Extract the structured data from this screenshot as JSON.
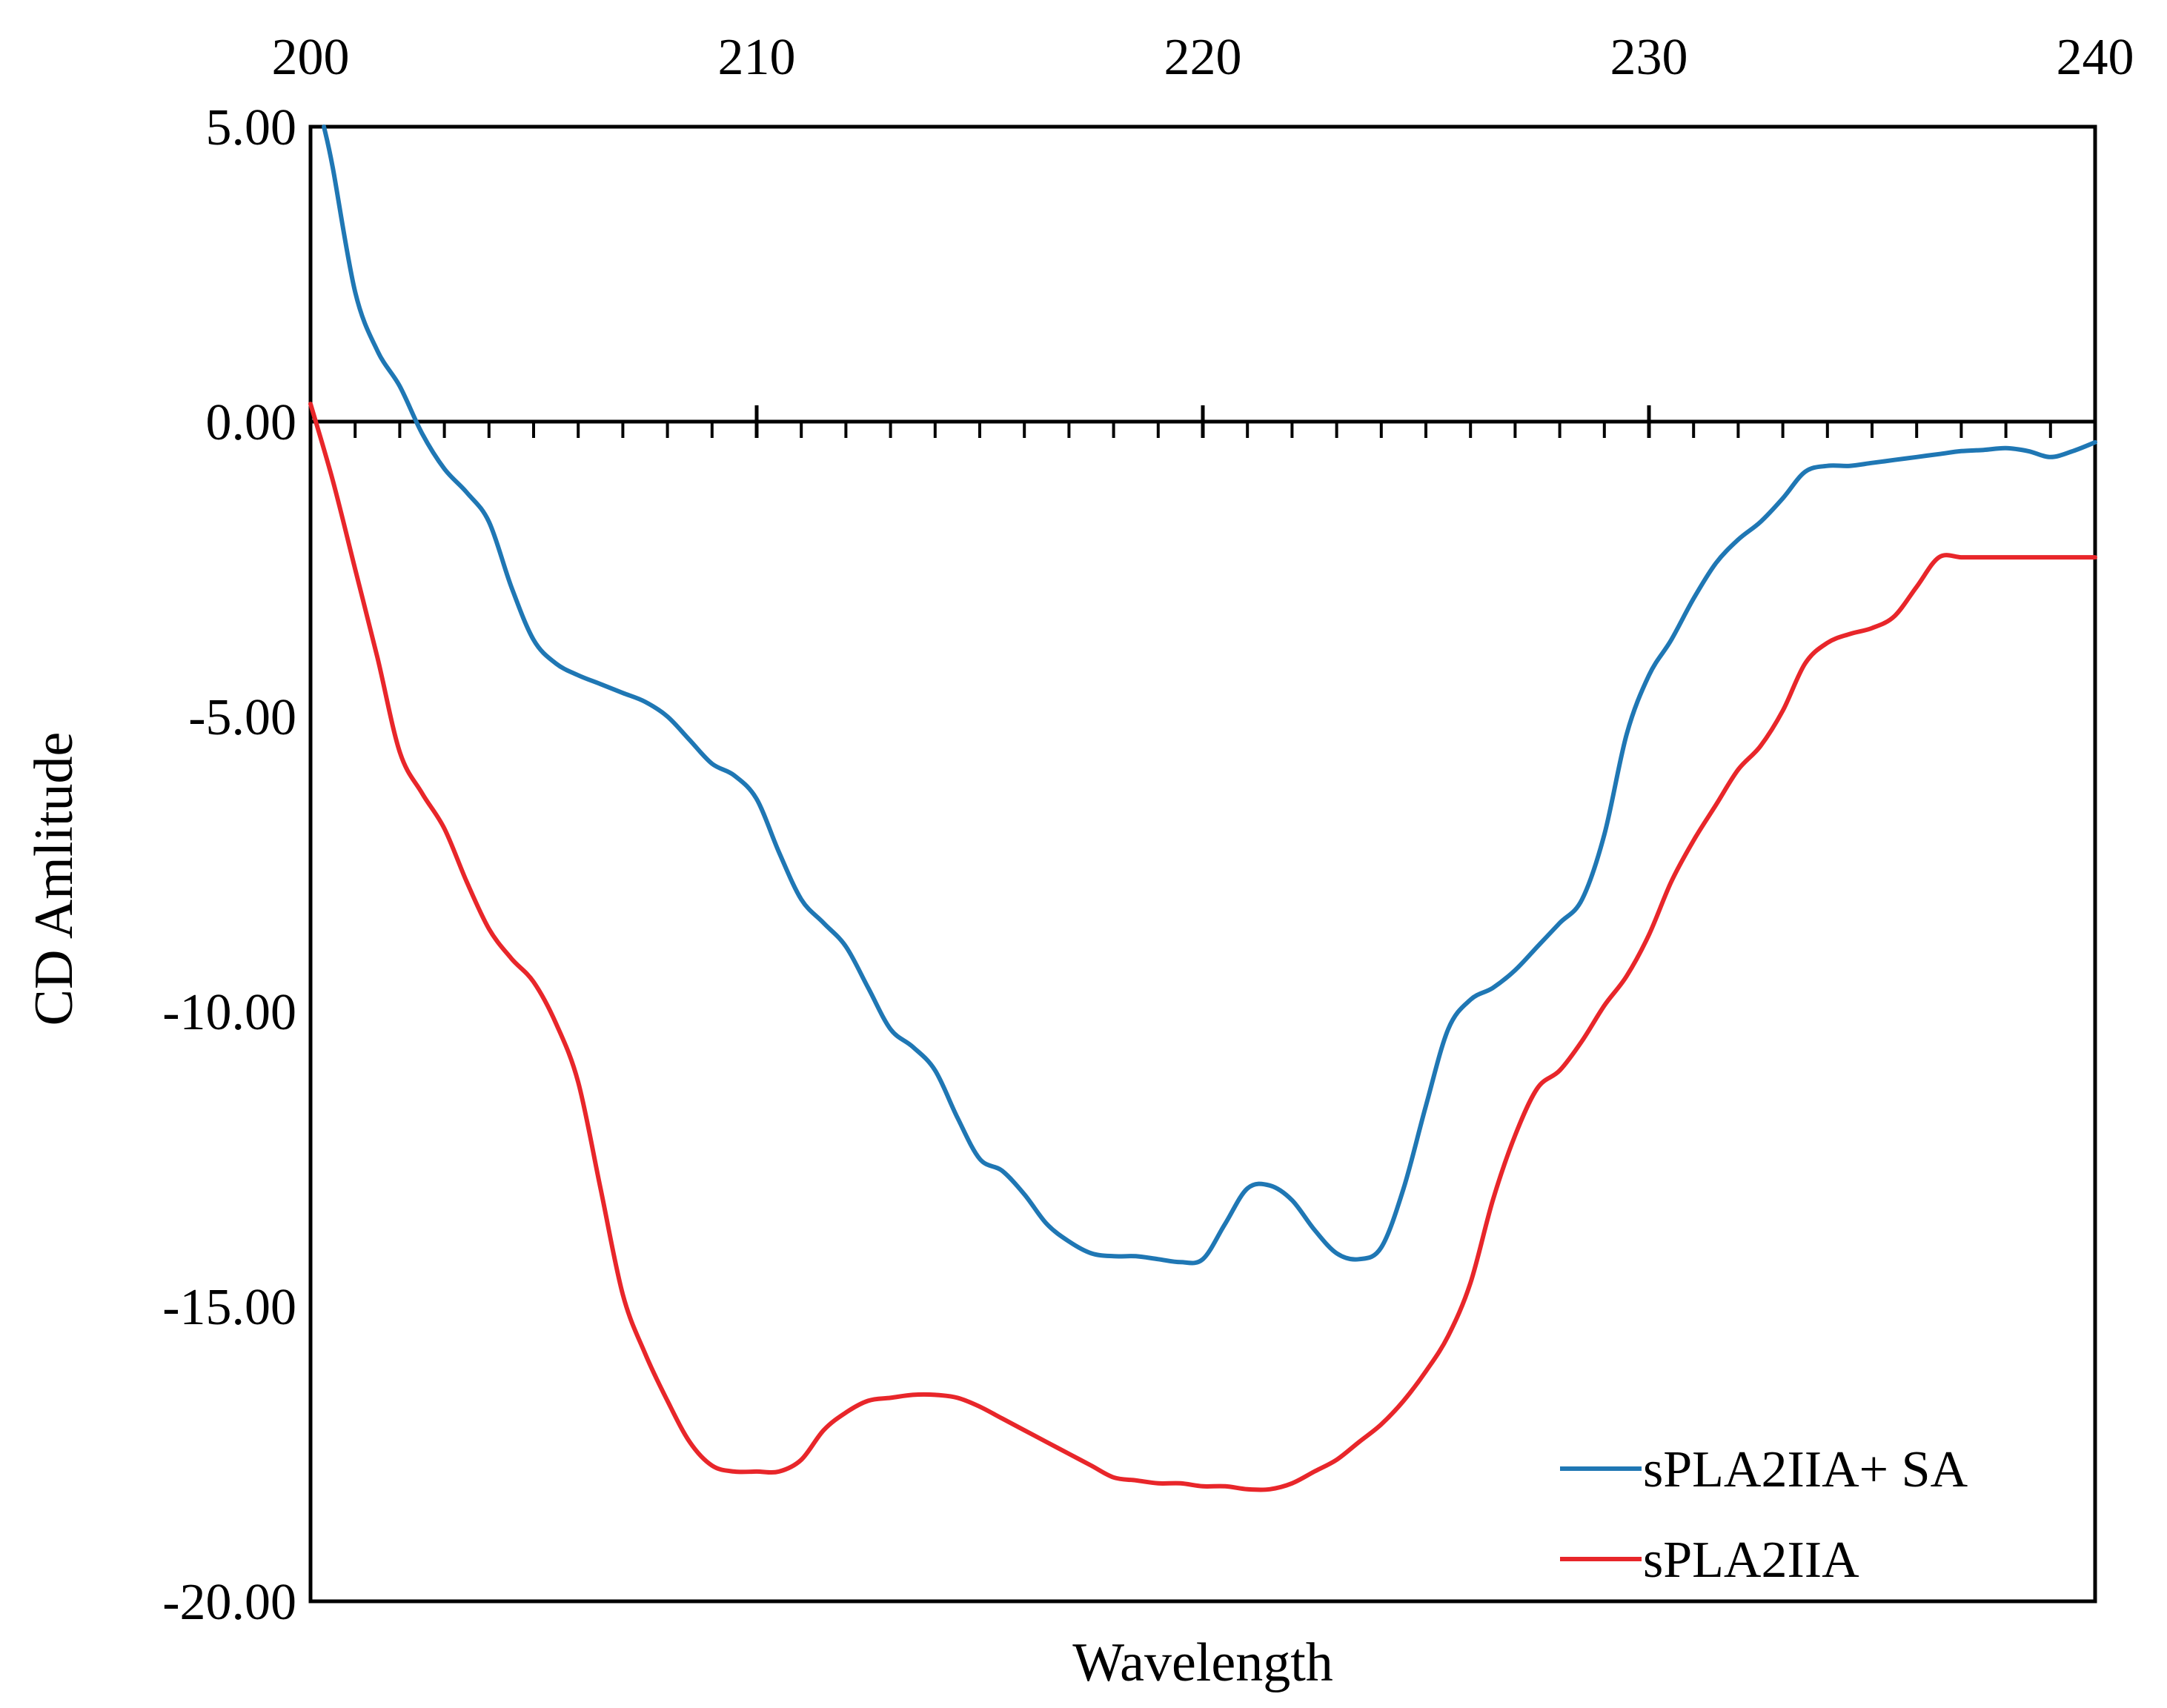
{
  "chart_data": {
    "type": "line",
    "title": "",
    "xlabel": "Wavelength",
    "ylabel": "CD Amlitude",
    "xlim": [
      200,
      240
    ],
    "ylim": [
      -20,
      5
    ],
    "x_ticks": [
      "200",
      "210",
      "220",
      "230",
      "240"
    ],
    "y_ticks": [
      "5.00",
      "0.00",
      "-5.00",
      "-10.00",
      "-15.00",
      "-20.00"
    ],
    "x_tick_values": [
      200,
      210,
      220,
      230,
      240
    ],
    "y_tick_values": [
      5,
      0,
      -5,
      -10,
      -15,
      -20
    ],
    "x_axis_position": "top",
    "grid": false,
    "legend_position": "bottom-right",
    "series": [
      {
        "name": "sPLA2IIA+ SA",
        "color": "#1f77b4",
        "x": [
          200.3,
          200.5,
          201,
          201.5,
          202,
          202.5,
          203,
          203.5,
          204,
          204.5,
          205,
          205.5,
          206,
          206.5,
          207,
          207.5,
          208,
          208.5,
          209,
          209.5,
          210,
          210.5,
          211,
          211.5,
          212,
          212.5,
          213,
          213.5,
          214,
          214.5,
          215,
          215.5,
          216,
          216.5,
          217,
          217.5,
          218,
          218.5,
          219,
          219.5,
          220,
          220.5,
          221,
          221.5,
          222,
          222.5,
          223,
          223.5,
          224,
          224.5,
          225,
          225.5,
          226,
          226.5,
          227,
          227.5,
          228,
          228.5,
          229,
          229.5,
          230,
          230.5,
          231,
          231.5,
          232,
          232.5,
          233,
          233.5,
          234,
          234.5,
          235,
          235.5,
          236,
          236.5,
          237,
          237.5,
          238,
          238.5,
          239,
          239.5,
          240
        ],
        "y": [
          5.0,
          4.3,
          2.2,
          1.2,
          0.6,
          -0.2,
          -0.8,
          -1.2,
          -1.7,
          -2.8,
          -3.7,
          -4.1,
          -4.3,
          -4.45,
          -4.6,
          -4.75,
          -5.0,
          -5.4,
          -5.8,
          -6.0,
          -6.4,
          -7.3,
          -8.1,
          -8.5,
          -8.9,
          -9.6,
          -10.3,
          -10.6,
          -11.0,
          -11.8,
          -12.5,
          -12.7,
          -13.1,
          -13.6,
          -13.9,
          -14.1,
          -14.15,
          -14.15,
          -14.2,
          -14.25,
          -14.2,
          -13.6,
          -13.0,
          -12.95,
          -13.2,
          -13.7,
          -14.1,
          -14.2,
          -14.0,
          -13.0,
          -11.6,
          -10.3,
          -9.8,
          -9.6,
          -9.3,
          -8.9,
          -8.5,
          -8.1,
          -7.0,
          -5.3,
          -4.3,
          -3.7,
          -3.0,
          -2.4,
          -2.0,
          -1.7,
          -1.3,
          -0.85,
          -0.75,
          -0.75,
          -0.7,
          -0.65,
          -0.6,
          -0.55,
          -0.5,
          -0.48,
          -0.45,
          -0.5,
          -0.6,
          -0.5,
          -0.35
        ]
      },
      {
        "name": "sPLA2IIA",
        "color": "#e8262a",
        "x": [
          200,
          200.5,
          201,
          201.5,
          202,
          202.5,
          203,
          203.5,
          204,
          204.5,
          205,
          205.5,
          206,
          206.5,
          207,
          207.5,
          208,
          208.5,
          209,
          209.5,
          210,
          210.5,
          211,
          211.5,
          212,
          212.5,
          213,
          213.5,
          214,
          214.5,
          215,
          215.5,
          216,
          216.5,
          217,
          217.5,
          218,
          218.5,
          219,
          219.5,
          220,
          220.5,
          221,
          221.5,
          222,
          222.5,
          223,
          223.5,
          224,
          224.5,
          225,
          225.5,
          226,
          226.5,
          227,
          227.5,
          228,
          228.5,
          229,
          229.5,
          230,
          230.5,
          231,
          231.5,
          232,
          232.5,
          233,
          233.5,
          234,
          234.5,
          235,
          235.5,
          236,
          236.5,
          237,
          237.5,
          238,
          238.5,
          239,
          239.5,
          240
        ],
        "y": [
          0.3,
          -1.0,
          -2.5,
          -4.0,
          -5.6,
          -6.3,
          -6.9,
          -7.8,
          -8.6,
          -9.1,
          -9.5,
          -10.2,
          -11.2,
          -13.0,
          -14.8,
          -15.8,
          -16.6,
          -17.3,
          -17.7,
          -17.8,
          -17.8,
          -17.8,
          -17.6,
          -17.1,
          -16.8,
          -16.6,
          -16.55,
          -16.5,
          -16.5,
          -16.55,
          -16.7,
          -16.9,
          -17.1,
          -17.3,
          -17.5,
          -17.7,
          -17.9,
          -17.95,
          -18.0,
          -18.0,
          -18.05,
          -18.05,
          -18.1,
          -18.1,
          -18.0,
          -17.8,
          -17.6,
          -17.3,
          -17.0,
          -16.6,
          -16.1,
          -15.5,
          -14.6,
          -13.2,
          -12.1,
          -11.3,
          -11.0,
          -10.5,
          -9.9,
          -9.4,
          -8.7,
          -7.8,
          -7.1,
          -6.5,
          -5.9,
          -5.5,
          -4.9,
          -4.1,
          -3.75,
          -3.6,
          -3.5,
          -3.3,
          -2.8,
          -2.3,
          -2.3,
          -2.3,
          -2.3,
          -2.3,
          -2.3,
          -2.3,
          -2.3
        ]
      }
    ]
  }
}
